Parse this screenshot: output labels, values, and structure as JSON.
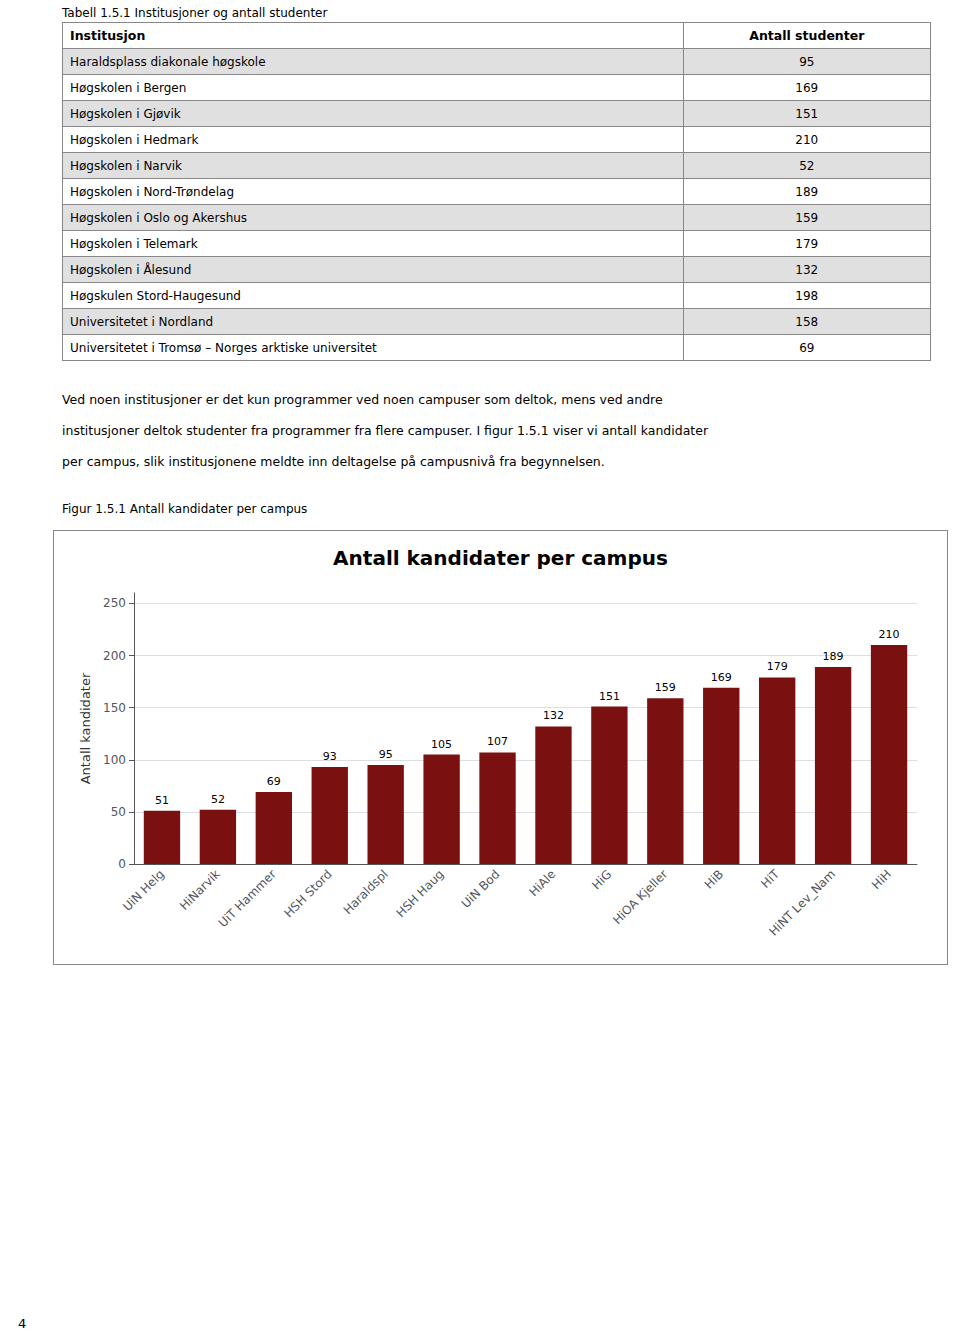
{
  "table_title": "Tabell 1.5.1 Institusjoner og antall studenter",
  "table_headers": [
    "Institusjon",
    "Antall studenter"
  ],
  "table_rows": [
    [
      "Haraldsplass diakonale høgskole",
      95
    ],
    [
      "Høgskolen i Bergen",
      169
    ],
    [
      "Høgskolen i Gjøvik",
      151
    ],
    [
      "Høgskolen i Hedmark",
      210
    ],
    [
      "Høgskolen i Narvik",
      52
    ],
    [
      "Høgskolen i Nord-Trøndelag",
      189
    ],
    [
      "Høgskolen i Oslo og Akershus",
      159
    ],
    [
      "Høgskolen i Telemark",
      179
    ],
    [
      "Høgskolen i Ålesund",
      132
    ],
    [
      "Høgskulen Stord-Haugesund",
      198
    ],
    [
      "Universitetet i Nordland",
      158
    ],
    [
      "Universitetet i Tromsø – Norges arktiske universitet",
      69
    ]
  ],
  "paragraph": [
    "Ved noen institusjoner er det kun programmer ved noen campuser som deltok, mens ved andre",
    "institusjoner deltok studenter fra programmer fra flere campuser. I figur 1.5.1 viser vi antall kandidater",
    "per campus, slik institusjonene meldte inn deltagelse på campusnivå fra begynnelsen."
  ],
  "figure_caption": "Figur 1.5.1 Antall kandidater per campus",
  "page_number": "4",
  "chart_data": {
    "type": "bar",
    "title": "Antall kandidater per campus",
    "ylabel": "Antall kandidater",
    "categories": [
      "UiN Helg",
      "HiNarvik",
      "UiT Hammer",
      "HSH Stord",
      "Haraldspl",
      "HSH Haug",
      "UiN Bod",
      "HiAle",
      "HiG",
      "HiOA Kjeller",
      "HiB",
      "HiT",
      "HiNT Lev_Nam",
      "HiH"
    ],
    "values": [
      51,
      52,
      69,
      93,
      95,
      105,
      107,
      132,
      151,
      159,
      169,
      179,
      189,
      210
    ],
    "color": "#7B1010",
    "ylim": [
      0,
      260
    ],
    "yticks": [
      0,
      50,
      100,
      150,
      200,
      250
    ],
    "grid": true,
    "data_labels": true
  }
}
